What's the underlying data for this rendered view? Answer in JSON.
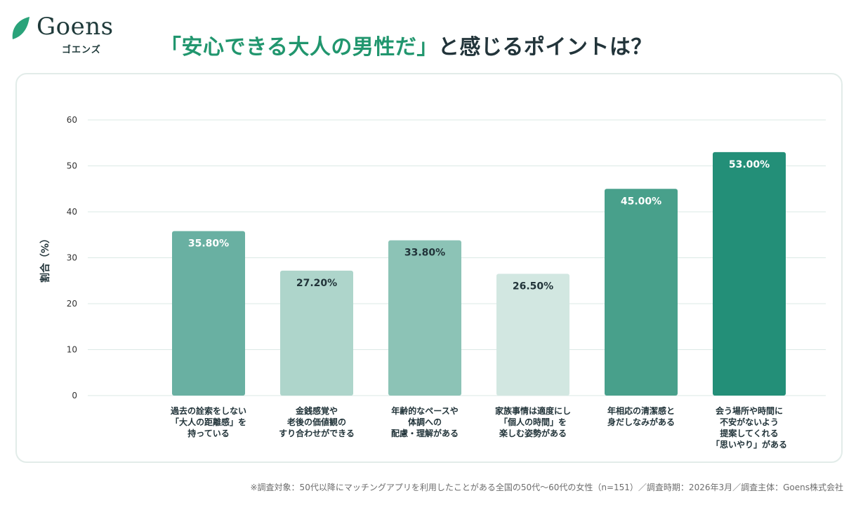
{
  "brand": {
    "name": "Goens",
    "kana": "ゴエンズ",
    "accent": "#21966e",
    "logo_leaf_color": "#2aa37a",
    "text_color": "#22343a"
  },
  "title": {
    "highlight": "「安心できる大人の男性だ」",
    "rest": "と感じるポイントは？"
  },
  "chart_data": {
    "type": "bar",
    "ylabel": "割合（%）",
    "xlabel": "",
    "ylim": [
      0,
      60
    ],
    "yticks": [
      0,
      10,
      20,
      30,
      40,
      50,
      60
    ],
    "grid": true,
    "categories": [
      [
        "過去の詮索をしない",
        "「大人の距離感」を",
        "持っている"
      ],
      [
        "金銭感覚や",
        "老後の価値観の",
        "すり合わせができる"
      ],
      [
        "年齢的なペースや",
        "体調への",
        "配慮・理解がある"
      ],
      [
        "家族事情は適度にし",
        "「個人の時間」を",
        "楽しむ姿勢がある"
      ],
      [
        "年相応の清潔感と",
        "身だしなみがある"
      ],
      [
        "会う場所や時間に",
        "不安がないよう",
        "提案してくれる",
        "「思いやり」がある"
      ]
    ],
    "values": [
      35.8,
      27.2,
      33.8,
      26.5,
      45.0,
      53.0
    ],
    "value_labels": [
      "35.80%",
      "27.20%",
      "33.80%",
      "26.50%",
      "45.00%",
      "53.00%"
    ],
    "bar_colors": [
      "#69b0a2",
      "#aed5cb",
      "#8cc3b6",
      "#d2e7e1",
      "#48a08b",
      "#238f78"
    ],
    "label_colors": [
      "#ffffff",
      "#22343a",
      "#22343a",
      "#22343a",
      "#ffffff",
      "#ffffff"
    ]
  },
  "footnote": "※調査対象：50代以降にマッチングアプリを利用したことがある全国の50代〜60代の女性（n=151）／調査時期：2026年3月／調査主体：Goens株式会社"
}
